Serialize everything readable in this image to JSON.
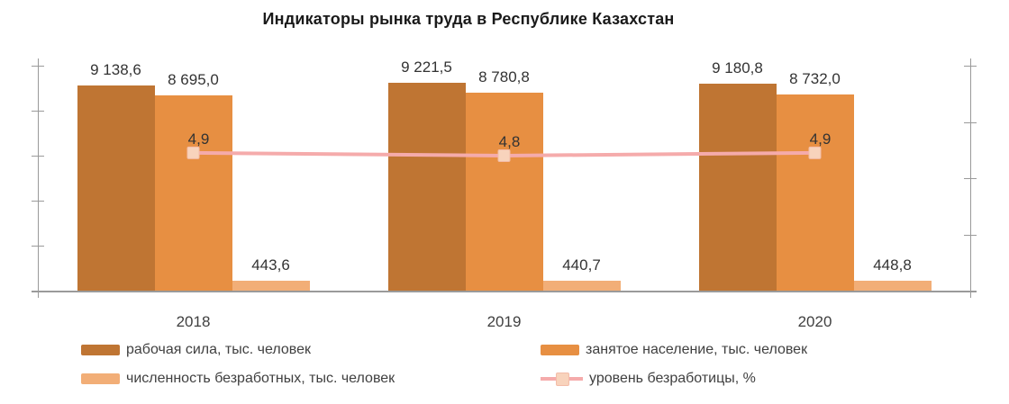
{
  "chart_data": {
    "type": "bar",
    "title": "Индикаторы рынка труда в Республике Казахстан",
    "categories": [
      "2018",
      "2019",
      "2020"
    ],
    "series": [
      {
        "key": "labor-force",
        "name": "рабочая сила, тыс. человек",
        "type": "bar",
        "color": "#bf7533",
        "values": [
          9138.6,
          9221.5,
          9180.8
        ],
        "labels": [
          "9 138,6",
          "9 221,5",
          "9 180,8"
        ],
        "axis": "left"
      },
      {
        "key": "employed-population",
        "name": "занятое население, тыс. человек",
        "type": "bar",
        "color": "#e78f42",
        "values": [
          8695.0,
          8780.8,
          8732.0
        ],
        "labels": [
          "8 695,0",
          "8 780,8",
          "8 732,0"
        ],
        "axis": "left"
      },
      {
        "key": "unemployed-count",
        "name": "численность безработных, тыс. человек",
        "type": "bar",
        "color": "#f2ae77",
        "values": [
          443.6,
          440.7,
          448.8
        ],
        "labels": [
          "443,6",
          "440,7",
          "448,8"
        ],
        "axis": "left"
      },
      {
        "key": "unemployment-rate",
        "name": "уровень безработицы,  %",
        "type": "line",
        "color": "#f5abab",
        "marker_fill": "#f8d3bc",
        "marker_border": "#f3bca8",
        "values": [
          4.9,
          4.8,
          4.9
        ],
        "labels": [
          "4,9",
          "4,8",
          "4,9"
        ],
        "axis": "right"
      }
    ],
    "axes": {
      "left": {
        "min": 0,
        "max": 10000,
        "tick_count": 6,
        "labels_visible": false
      },
      "right": {
        "min": 0,
        "max": 8,
        "tick_count": 5,
        "labels_visible": false
      }
    },
    "grid": false,
    "legend_position": "bottom",
    "colors": {
      "axis_line": "#9a9a9a",
      "label_text": "#333333",
      "background": "#ffffff"
    }
  }
}
